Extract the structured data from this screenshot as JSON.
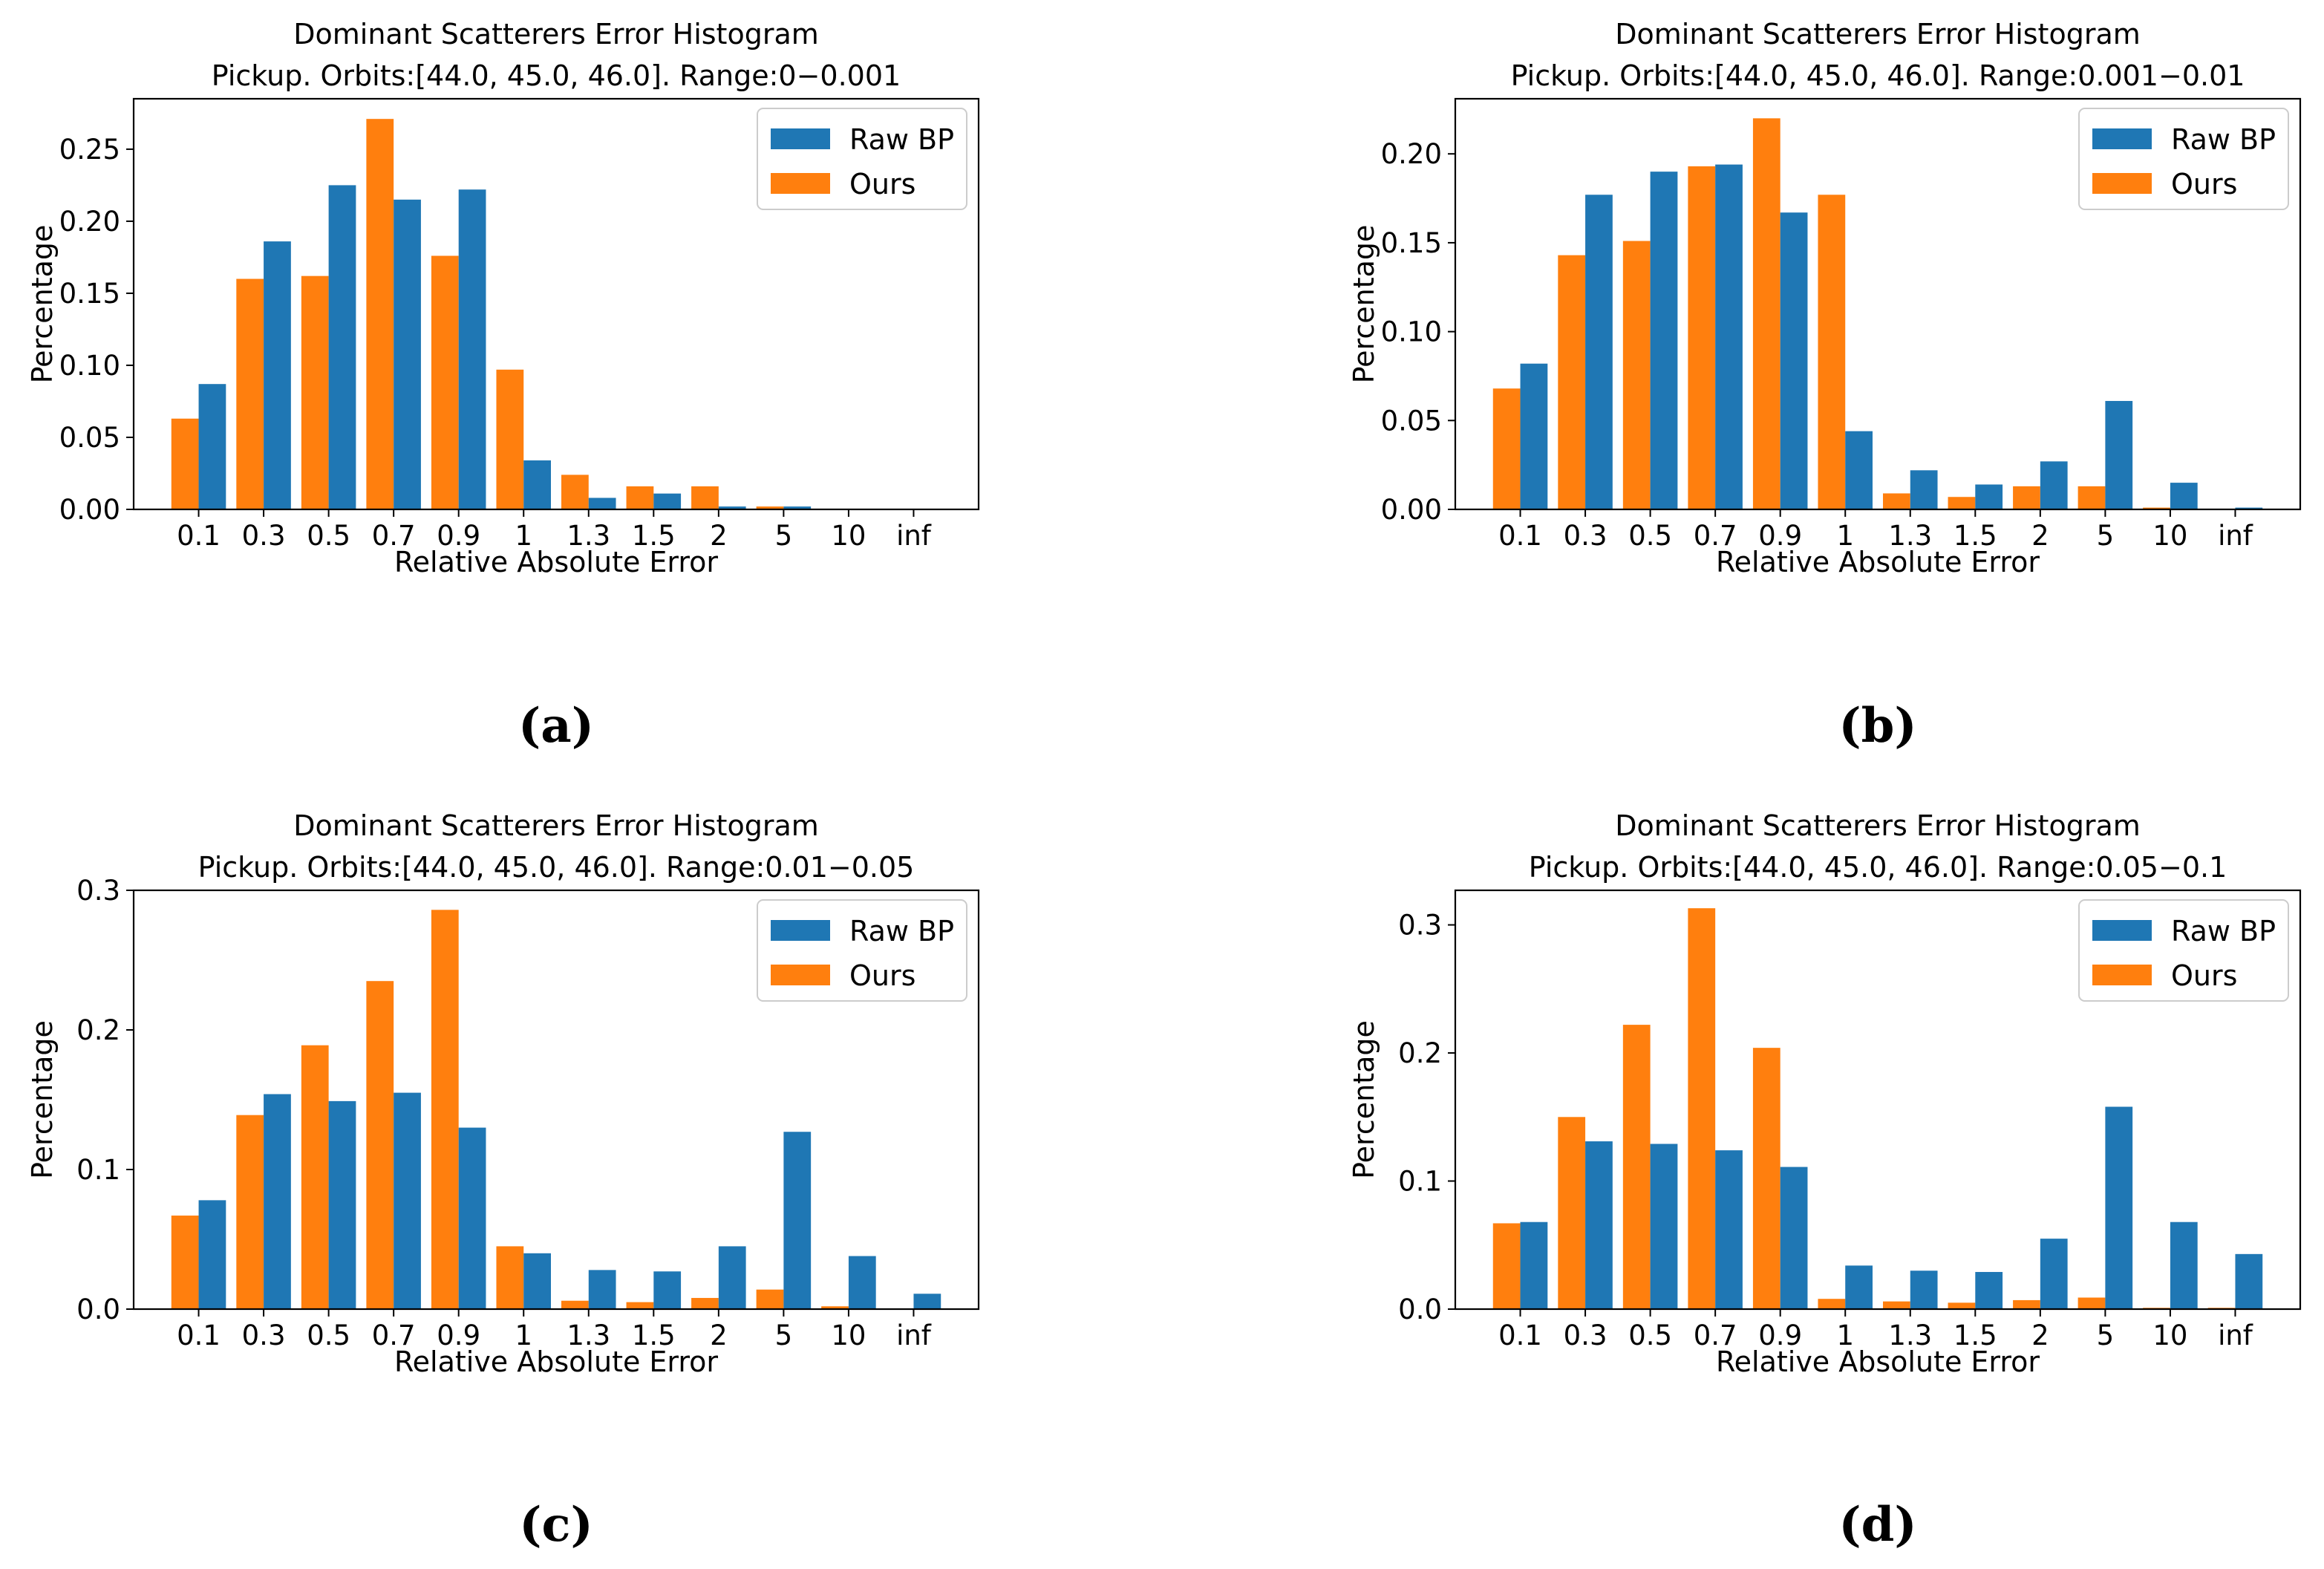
{
  "chart_data": [
    {
      "type": "bar",
      "panel_label": "(a)",
      "title": "Dominant Scatterers Error Histogram",
      "subtitle": "Pickup. Orbits:[44.0, 45.0, 46.0]. Range:0−0.001",
      "xlabel": "Relative Absolute Error",
      "ylabel": "Percentage",
      "categories": [
        "0.1",
        "0.3",
        "0.5",
        "0.7",
        "0.9",
        "1",
        "1.3",
        "1.5",
        "2",
        "5",
        "10",
        "inf"
      ],
      "ylim": [
        0,
        0.285
      ],
      "yticks": [
        "0.00",
        "0.05",
        "0.10",
        "0.15",
        "0.20",
        "0.25"
      ],
      "series": [
        {
          "name": "Raw BP",
          "color": "#1f77b4",
          "values": [
            0.087,
            0.186,
            0.225,
            0.215,
            0.222,
            0.034,
            0.008,
            0.011,
            0.002,
            0.002,
            0.0,
            0.0
          ]
        },
        {
          "name": "Ours",
          "color": "#ff7f0e",
          "values": [
            0.063,
            0.16,
            0.162,
            0.271,
            0.176,
            0.097,
            0.024,
            0.016,
            0.016,
            0.002,
            0.0,
            0.0
          ]
        }
      ]
    },
    {
      "type": "bar",
      "panel_label": "(b)",
      "title": "Dominant Scatterers Error Histogram",
      "subtitle": "Pickup. Orbits:[44.0, 45.0, 46.0]. Range:0.001−0.01",
      "xlabel": "Relative Absolute Error",
      "ylabel": "Percentage",
      "categories": [
        "0.1",
        "0.3",
        "0.5",
        "0.7",
        "0.9",
        "1",
        "1.3",
        "1.5",
        "2",
        "5",
        "10",
        "inf"
      ],
      "ylim": [
        0,
        0.231
      ],
      "yticks": [
        "0.00",
        "0.05",
        "0.10",
        "0.15",
        "0.20"
      ],
      "series": [
        {
          "name": "Raw BP",
          "color": "#1f77b4",
          "values": [
            0.082,
            0.177,
            0.19,
            0.194,
            0.167,
            0.044,
            0.022,
            0.014,
            0.027,
            0.061,
            0.015,
            0.001
          ]
        },
        {
          "name": "Ours",
          "color": "#ff7f0e",
          "values": [
            0.068,
            0.143,
            0.151,
            0.193,
            0.22,
            0.177,
            0.009,
            0.007,
            0.013,
            0.013,
            0.001,
            0.0
          ]
        }
      ]
    },
    {
      "type": "bar",
      "panel_label": "(c)",
      "title": "Dominant Scatterers Error Histogram",
      "subtitle": "Pickup. Orbits:[44.0, 45.0, 46.0]. Range:0.01−0.05",
      "xlabel": "Relative Absolute Error",
      "ylabel": "Percentage",
      "categories": [
        "0.1",
        "0.3",
        "0.5",
        "0.7",
        "0.9",
        "1",
        "1.3",
        "1.5",
        "2",
        "5",
        "10",
        "inf"
      ],
      "ylim": [
        0,
        0.3
      ],
      "yticks": [
        "0.0",
        "0.1",
        "0.2",
        "0.3"
      ],
      "series": [
        {
          "name": "Raw BP",
          "color": "#1f77b4",
          "values": [
            0.078,
            0.154,
            0.149,
            0.155,
            0.13,
            0.04,
            0.028,
            0.027,
            0.045,
            0.127,
            0.038,
            0.011
          ]
        },
        {
          "name": "Ours",
          "color": "#ff7f0e",
          "values": [
            0.067,
            0.139,
            0.189,
            0.235,
            0.286,
            0.045,
            0.006,
            0.005,
            0.008,
            0.014,
            0.002,
            0.0
          ]
        }
      ]
    },
    {
      "type": "bar",
      "panel_label": "(d)",
      "title": "Dominant Scatterers Error Histogram",
      "subtitle": "Pickup. Orbits:[44.0, 45.0, 46.0]. Range:0.05−0.1",
      "xlabel": "Relative Absolute Error",
      "ylabel": "Percentage",
      "categories": [
        "0.1",
        "0.3",
        "0.5",
        "0.7",
        "0.9",
        "1",
        "1.3",
        "1.5",
        "2",
        "5",
        "10",
        "inf"
      ],
      "ylim": [
        0,
        0.327
      ],
      "yticks": [
        "0.0",
        "0.1",
        "0.2",
        "0.3"
      ],
      "series": [
        {
          "name": "Raw BP",
          "color": "#1f77b4",
          "values": [
            0.068,
            0.131,
            0.129,
            0.124,
            0.111,
            0.034,
            0.03,
            0.029,
            0.055,
            0.158,
            0.068,
            0.043
          ]
        },
        {
          "name": "Ours",
          "color": "#ff7f0e",
          "values": [
            0.067,
            0.15,
            0.222,
            0.313,
            0.204,
            0.008,
            0.006,
            0.005,
            0.007,
            0.009,
            0.001,
            0.001
          ]
        }
      ]
    }
  ]
}
